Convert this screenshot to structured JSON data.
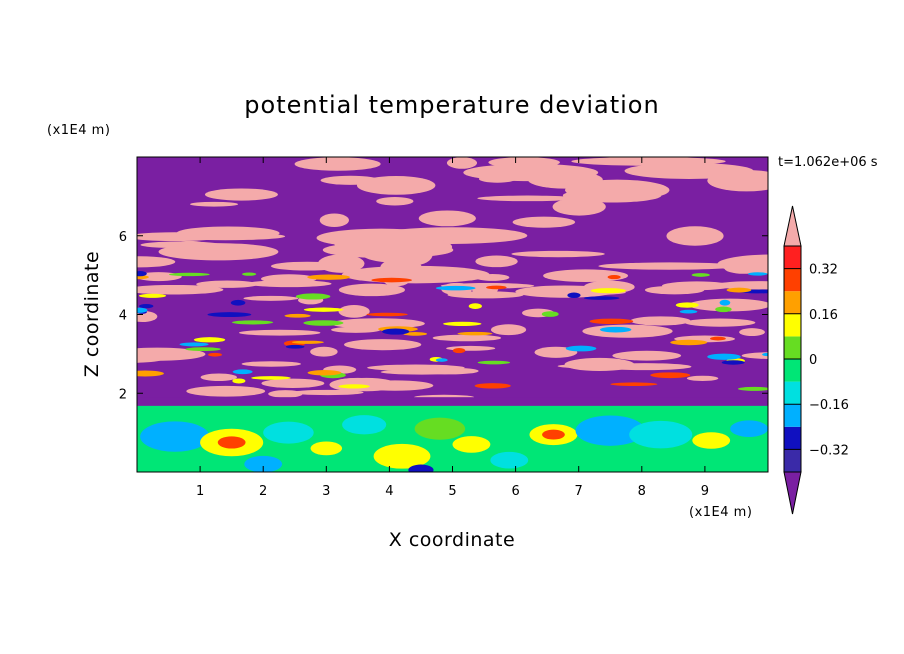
{
  "chart_data": {
    "type": "heatmap",
    "title": "potential temperature deviation",
    "xlabel": "X coordinate",
    "ylabel": "Z coordinate",
    "x_unit": "(x1E4 m)",
    "y_unit": "(x1E4 m)",
    "time_label": "t=1.062e+06 s",
    "xlim": [
      0,
      10
    ],
    "ylim": [
      0,
      8
    ],
    "x_ticks": [
      "1",
      "2",
      "3",
      "4",
      "5",
      "6",
      "7",
      "8",
      "9"
    ],
    "y_ticks": [
      "2",
      "4",
      "6"
    ],
    "colorbar": {
      "levels": [
        -0.4,
        -0.32,
        -0.24,
        -0.16,
        -0.08,
        0,
        0.08,
        0.16,
        0.24,
        0.32,
        0.4
      ],
      "tick_labels": [
        "0.32",
        "0.16",
        "0",
        "−0.16",
        "−0.32"
      ],
      "colors": [
        "#7a1fa2",
        "#3a2aa8",
        "#1010c0",
        "#00b0ff",
        "#00e0e0",
        "#00e676",
        "#66dd22",
        "#ffff00",
        "#ffa000",
        "#ff4000",
        "#ff2020",
        "#f4aaaa"
      ],
      "extend": "both"
    }
  }
}
